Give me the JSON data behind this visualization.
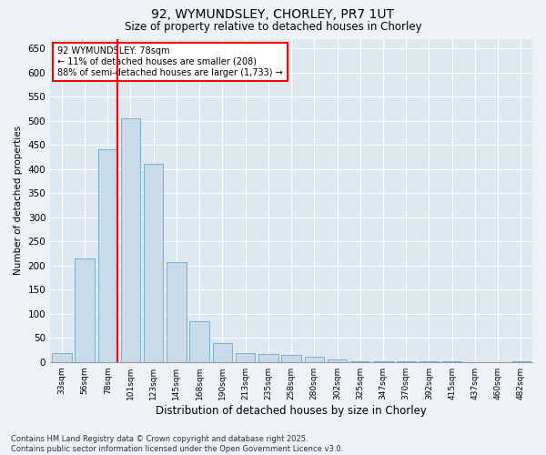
{
  "title1": "92, WYMUNDSLEY, CHORLEY, PR7 1UT",
  "title2": "Size of property relative to detached houses in Chorley",
  "xlabel": "Distribution of detached houses by size in Chorley",
  "ylabel": "Number of detached properties",
  "categories": [
    "33sqm",
    "56sqm",
    "78sqm",
    "101sqm",
    "123sqm",
    "145sqm",
    "168sqm",
    "190sqm",
    "213sqm",
    "235sqm",
    "258sqm",
    "280sqm",
    "302sqm",
    "325sqm",
    "347sqm",
    "370sqm",
    "392sqm",
    "415sqm",
    "437sqm",
    "460sqm",
    "482sqm"
  ],
  "values": [
    18,
    215,
    440,
    505,
    410,
    207,
    85,
    40,
    18,
    17,
    14,
    11,
    5,
    2,
    1,
    1,
    1,
    1,
    0,
    0,
    2
  ],
  "bar_color": "#c9daea",
  "bar_edge_color": "#7aaec8",
  "red_line_index": 2,
  "annotation_title": "92 WYMUNDSLEY: 78sqm",
  "annotation_line1": "← 11% of detached houses are smaller (208)",
  "annotation_line2": "88% of semi-detached houses are larger (1,733) →",
  "ylim": [
    0,
    670
  ],
  "yticks": [
    0,
    50,
    100,
    150,
    200,
    250,
    300,
    350,
    400,
    450,
    500,
    550,
    600,
    650
  ],
  "footer1": "Contains HM Land Registry data © Crown copyright and database right 2025.",
  "footer2": "Contains public sector information licensed under the Open Government Licence v3.0.",
  "bg_color": "#edf2f7",
  "plot_bg_color": "#dde8f0"
}
